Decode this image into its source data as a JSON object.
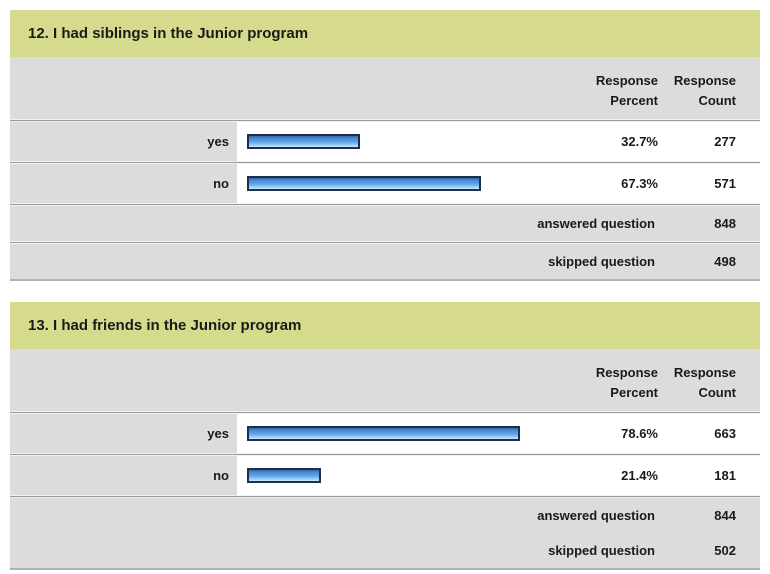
{
  "colors": {
    "section_header_bg": "#d6da8d",
    "band_bg": "#dcdcdc",
    "bar_border": "#1c2f52",
    "bar_fill_main": "#57a0ea",
    "bar_fill_light": "#cfe8fa",
    "divider_line": "#999999",
    "text": "#1a1a1a"
  },
  "column_headers": {
    "percent_line1": "Response",
    "percent_line2": "Percent",
    "count_line1": "Response",
    "count_line2": "Count"
  },
  "sections": [
    {
      "title": "12. I had siblings in the Junior program",
      "rows": [
        {
          "label": "yes",
          "percent_text": "32.7%",
          "percent_value": 32.7,
          "count": "277"
        },
        {
          "label": "no",
          "percent_text": "67.3%",
          "percent_value": 67.3,
          "count": "571"
        }
      ],
      "answered_label": "answered question",
      "answered_count": "848",
      "skipped_label": "skipped question",
      "skipped_count": "498"
    },
    {
      "title": "13. I had friends in the Junior program",
      "rows": [
        {
          "label": "yes",
          "percent_text": "78.6%",
          "percent_value": 78.6,
          "count": "663"
        },
        {
          "label": "no",
          "percent_text": "21.4%",
          "percent_value": 21.4,
          "count": "181"
        }
      ],
      "answered_label": "answered question",
      "answered_count": "844",
      "skipped_label": "skipped question",
      "skipped_count": "502"
    }
  ],
  "chart_data": [
    {
      "type": "bar",
      "orientation": "horizontal",
      "title": "12. I had siblings in the Junior program",
      "categories": [
        "yes",
        "no"
      ],
      "values": [
        32.7,
        67.3
      ],
      "value_unit": "percent",
      "counts": [
        277,
        571
      ],
      "columns": [
        "Response Percent",
        "Response Count"
      ],
      "answered_question": 848,
      "skipped_question": 498,
      "xlim": [
        0,
        100
      ],
      "grid": false,
      "legend": false
    },
    {
      "type": "bar",
      "orientation": "horizontal",
      "title": "13. I had friends in the Junior program",
      "categories": [
        "yes",
        "no"
      ],
      "values": [
        78.6,
        21.4
      ],
      "value_unit": "percent",
      "counts": [
        663,
        181
      ],
      "columns": [
        "Response Percent",
        "Response Count"
      ],
      "answered_question": 844,
      "skipped_question": 502,
      "xlim": [
        0,
        100
      ],
      "grid": false,
      "legend": false
    }
  ]
}
